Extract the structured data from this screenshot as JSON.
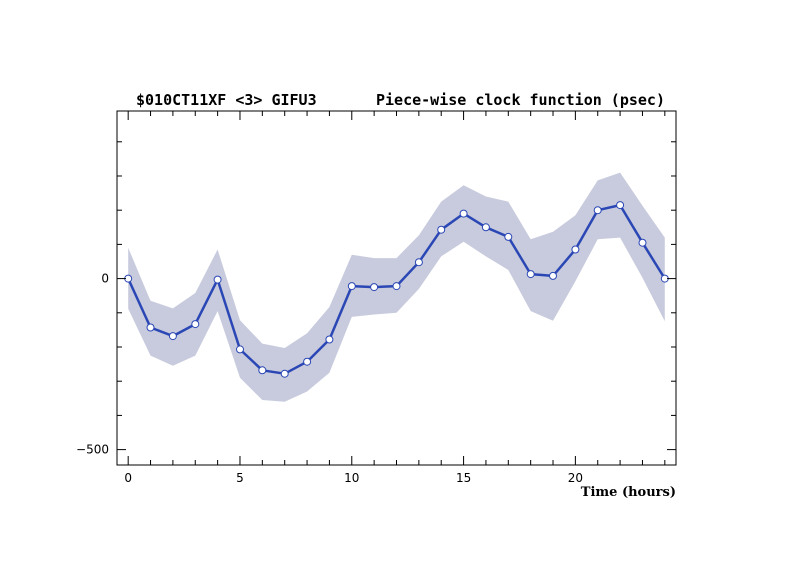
{
  "chart_data": {
    "type": "line",
    "title_left": "$010CT11XF <3>  GIFU3",
    "title_right": "Piece-wise clock function (psec)",
    "xlabel": "Time (hours)",
    "ylabel": "",
    "xlim": [
      -0.5,
      24.5
    ],
    "ylim": [
      -545,
      490
    ],
    "x_ticks": [
      0,
      5,
      10,
      15,
      20
    ],
    "y_ticks": [
      0,
      -500
    ],
    "y_tick_labels": [
      "0",
      "−500"
    ],
    "grid": false,
    "series": [
      {
        "x": [
          0,
          1,
          2,
          3,
          4,
          5,
          6,
          7,
          8,
          9,
          10,
          11,
          12,
          13,
          14,
          15,
          16,
          17,
          18,
          19,
          20,
          21,
          22,
          23,
          24
        ],
        "values": [
          0,
          -143,
          -168,
          -133,
          -3,
          -207,
          -268,
          -278,
          -243,
          -178,
          -22,
          -25,
          -22,
          48,
          143,
          190,
          150,
          122,
          13,
          8,
          85,
          200,
          215,
          105,
          0
        ],
        "band_upper": [
          90,
          -65,
          -87,
          -42,
          85,
          -122,
          -190,
          -203,
          -160,
          -83,
          70,
          60,
          60,
          127,
          225,
          273,
          240,
          225,
          115,
          137,
          185,
          287,
          310,
          213,
          120
        ],
        "band_lower": [
          -88,
          -225,
          -255,
          -225,
          -95,
          -290,
          -355,
          -360,
          -330,
          -275,
          -112,
          -105,
          -100,
          -30,
          65,
          108,
          65,
          25,
          -95,
          -123,
          -8,
          115,
          120,
          2,
          -125
        ]
      }
    ],
    "colors": {
      "line": "#2a47b5",
      "band": "#c8cbdd",
      "marker_fill": "#ffffff",
      "marker_stroke": "#2a47b5"
    }
  }
}
